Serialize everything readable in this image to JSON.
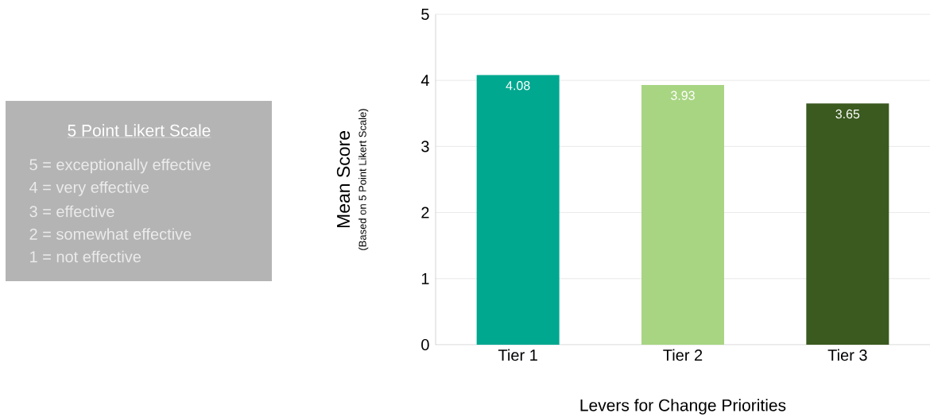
{
  "chart_data": [
    {
      "type": "bar",
      "categories": [
        "Tier 1",
        "Tier 2",
        "Tier 3"
      ],
      "values": [
        4.08,
        3.93,
        3.65
      ],
      "colors": [
        "#00a88f",
        "#a8d582",
        "#3a5a1f"
      ],
      "ylim": [
        0,
        5
      ],
      "yticks": [
        0,
        1,
        2,
        3,
        4,
        5
      ],
      "grid": "y",
      "data_labels": true,
      "xlabel": "Levers for Change Priorities",
      "ylabel": "Mean Score",
      "annotations": [
        "(Based on 5 Point Likert Scale)"
      ]
    },
    {
      "type": "other",
      "title": "5 Point Likert Scale",
      "annotations": [
        "5 = exceptionally effective",
        "4 = very effective",
        "3 = effective",
        "2 = somewhat effective",
        "1 = not effective"
      ]
    }
  ]
}
